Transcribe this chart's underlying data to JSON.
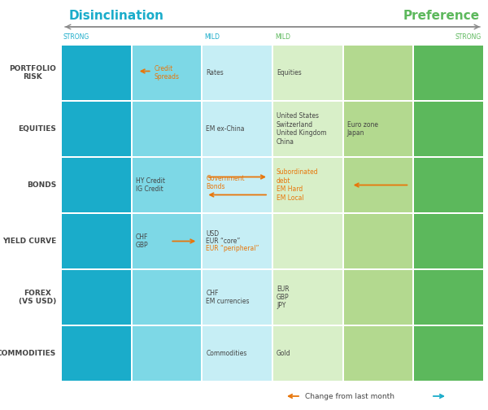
{
  "title_left": "Disinclination",
  "title_right": "Preference",
  "col_labels": [
    "STRONG",
    "MILD",
    "MILD",
    "STRONG"
  ],
  "row_labels": [
    "PORTFOLIO\nRISK",
    "EQUITIES",
    "BONDS",
    "YIELD CURVE",
    "FOREX\n(VS USD)",
    "COMMODITIES"
  ],
  "col_colors": [
    "#1aacca",
    "#7dd8e6",
    "#c6eef5",
    "#d8efc8",
    "#b3d98f",
    "#5cb85c"
  ],
  "n_cols": 6,
  "n_rows": 6,
  "cell_content": [
    [
      {
        "text": "",
        "color": "black",
        "arrow": null
      },
      {
        "text": "Credit\nSpreads",
        "color": "#e8760a",
        "arrow": "left_before_text"
      },
      {
        "text": "Rates",
        "color": "black",
        "arrow": null
      },
      {
        "text": "Equities",
        "color": "black",
        "arrow": null
      },
      {
        "text": "",
        "color": "black",
        "arrow": null
      },
      {
        "text": "",
        "color": "black",
        "arrow": null
      }
    ],
    [
      {
        "text": "",
        "color": "black",
        "arrow": null
      },
      {
        "text": "",
        "color": "black",
        "arrow": null
      },
      {
        "text": "EM ex-China",
        "color": "black",
        "arrow": null
      },
      {
        "text": "United States\nSwitzerland\nUnited Kingdom\nChina",
        "color": "black",
        "arrow": null
      },
      {
        "text": "Euro zone\nJapan",
        "color": "black",
        "arrow": null
      },
      {
        "text": "",
        "color": "black",
        "arrow": null
      }
    ],
    [
      {
        "text": "",
        "color": "black",
        "arrow": null
      },
      {
        "text": "HY Credit\nIG Credit",
        "color": "black",
        "arrow": null
      },
      {
        "text": "Government\nBonds",
        "color": "#e8760a",
        "arrow": "right_then_left"
      },
      {
        "text": "Subordinated\ndebt\nEM Hard\nEM Local",
        "color": "#e8760a",
        "arrow": null
      },
      {
        "text": "",
        "color": "black",
        "arrow": "left_alone"
      },
      {
        "text": "",
        "color": "black",
        "arrow": null
      }
    ],
    [
      {
        "text": "",
        "color": "black",
        "arrow": null
      },
      {
        "text": "CHF\nGBP",
        "color": "black",
        "arrow": "right_before"
      },
      {
        "text": "USD\nEUR “core”\nEUR “peripheral”",
        "color": "mixed_yield",
        "arrow": null
      },
      {
        "text": "",
        "color": "black",
        "arrow": null
      },
      {
        "text": "",
        "color": "black",
        "arrow": null
      },
      {
        "text": "",
        "color": "black",
        "arrow": null
      }
    ],
    [
      {
        "text": "",
        "color": "black",
        "arrow": null
      },
      {
        "text": "",
        "color": "black",
        "arrow": null
      },
      {
        "text": "CHF\nEM currencies",
        "color": "black",
        "arrow": null
      },
      {
        "text": "EUR\nGBP\nJPY",
        "color": "black",
        "arrow": null
      },
      {
        "text": "",
        "color": "black",
        "arrow": null
      },
      {
        "text": "",
        "color": "black",
        "arrow": null
      }
    ],
    [
      {
        "text": "",
        "color": "black",
        "arrow": null
      },
      {
        "text": "",
        "color": "black",
        "arrow": null
      },
      {
        "text": "Commodities",
        "color": "black",
        "arrow": null
      },
      {
        "text": "Gold",
        "color": "black",
        "arrow": null
      },
      {
        "text": "",
        "color": "black",
        "arrow": null
      },
      {
        "text": "",
        "color": "black",
        "arrow": null
      }
    ]
  ],
  "orange_color": "#e8760a",
  "cyan_color": "#1aacca",
  "green_color": "#5cb85c",
  "text_color": "#444444",
  "background": "#ffffff"
}
